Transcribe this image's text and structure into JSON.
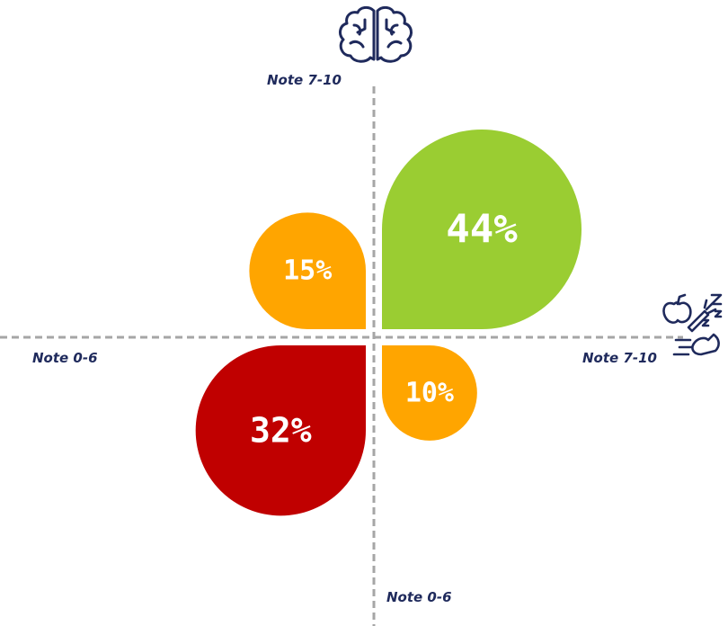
{
  "chart_data": {
    "type": "petal",
    "axes": {
      "y_top_label": "Note 7-10",
      "y_bottom_label": "Note 0-6",
      "x_left_label": "Note 0-6",
      "x_right_label": "Note 7-10",
      "y_icon": "brain-icon",
      "x_icon": "healthy-lifestyle-icon"
    },
    "petals": [
      {
        "quadrant": "top-right",
        "value": 44,
        "label": "44%",
        "color": "#9acd32"
      },
      {
        "quadrant": "top-left",
        "value": 15,
        "label": "15%",
        "color": "#ffa500"
      },
      {
        "quadrant": "bottom-right",
        "value": 10,
        "label": "10%",
        "color": "#ffa500"
      },
      {
        "quadrant": "bottom-left",
        "value": 32,
        "label": "32%",
        "color": "#c00000"
      }
    ]
  },
  "colors": {
    "axis": "#a6a6a6",
    "label": "#1f2a5c",
    "icon_stroke": "#1f2a5c"
  }
}
